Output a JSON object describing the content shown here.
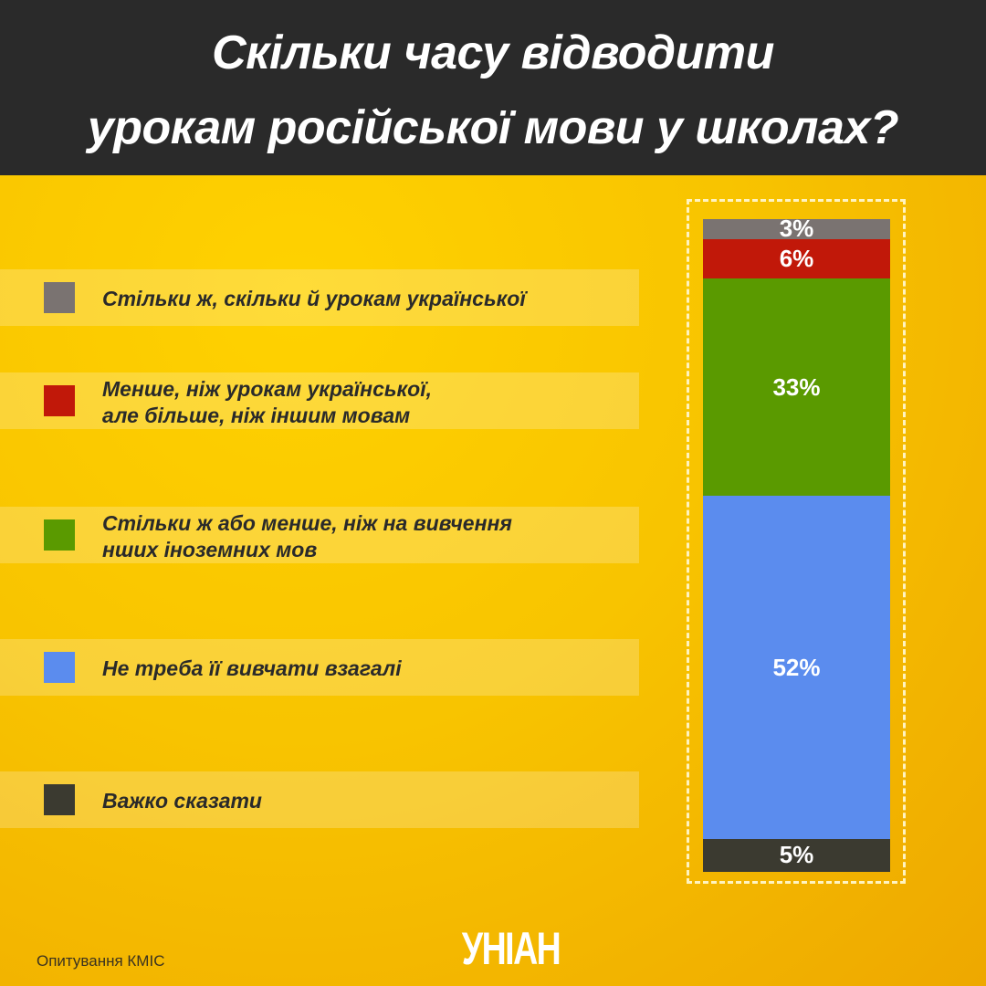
{
  "chart_data": {
    "type": "stacked_bar",
    "title": [
      "Скільки часу відводити",
      "урокам російської мови у школах?"
    ],
    "series": [
      {
        "name": "Стільки ж, скільки й урокам української",
        "color": "#7a7371",
        "values": [
          3
        ],
        "value_labels": [
          "3%"
        ]
      },
      {
        "name": "Менше, ніж урокам української,\nале більше, ніж іншим мовам",
        "color": "#c11809",
        "values": [
          6
        ],
        "value_labels": [
          "6%"
        ]
      },
      {
        "name": "Стільки ж або менше, ніж на вивчення\nнших іноземних мов",
        "color": "#5a9a00",
        "values": [
          33
        ],
        "value_labels": [
          "33%"
        ]
      },
      {
        "name": "Не треба її вивчати взагалі",
        "color": "#5b8cee",
        "values": [
          52
        ],
        "value_labels": [
          "52%"
        ]
      },
      {
        "name": "Важко сказати",
        "color": "#3b3a30",
        "values": [
          5
        ],
        "value_labels": [
          "5%"
        ]
      }
    ],
    "source": "Опитування КМІС",
    "logo": "УНІАН"
  }
}
